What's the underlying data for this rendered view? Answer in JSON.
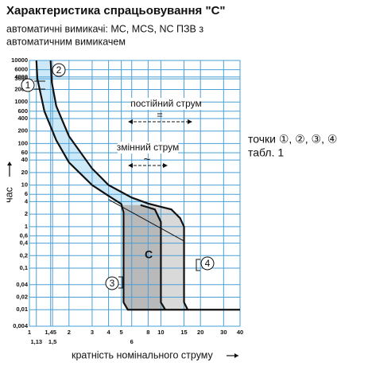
{
  "chart_data": {
    "type": "line",
    "title": "Характеристика спрацьовування \"C\"",
    "subtitle": [
      "автоматичні вимикачі: MC, MCS, NC ПЗВ з",
      "автоматичним вимикачем"
    ],
    "x_label": "кратність номінального струму",
    "y_label": "час",
    "xlog": true,
    "ylog": true,
    "grid": true,
    "xlim": [
      1,
      40
    ],
    "ylim": [
      0.004,
      10000
    ],
    "xticks": [
      1,
      {
        "value": 1.13,
        "label": "1,13"
      },
      {
        "value": 1.45,
        "label": "1,45"
      },
      {
        "value": 1.5,
        "label": "1,5"
      },
      2,
      3,
      4,
      5,
      6,
      8,
      10,
      15,
      20,
      30,
      40
    ],
    "yticks": [
      10000,
      6000,
      4000,
      3600,
      2000,
      1000,
      600,
      400,
      200,
      100,
      60,
      40,
      20,
      10,
      6,
      4,
      2,
      1,
      {
        "value": 0.6,
        "label": "0,6"
      },
      {
        "value": 0.4,
        "label": "0,4"
      },
      {
        "value": 0.2,
        "label": "0,2"
      },
      {
        "value": 0.1,
        "label": "0,1"
      },
      {
        "value": 0.04,
        "label": "0,04"
      },
      {
        "value": 0.02,
        "label": "0,02"
      },
      {
        "value": 0.01,
        "label": "0,01"
      },
      {
        "value": 0.004,
        "label": "0,004"
      }
    ],
    "series": [
      {
        "color": "#111111",
        "x": [
          1.13,
          1.15,
          1.3,
          1.6,
          2,
          3,
          4,
          5,
          5.2,
          5.2,
          5.6,
          40
        ],
        "y": [
          10000,
          3600,
          600,
          120,
          35,
          10,
          5.5,
          3.5,
          2.2,
          0.015,
          0.01,
          0.01
        ]
      },
      {
        "color": "#111111",
        "x": [
          1.45,
          1.48,
          1.6,
          2,
          3,
          4,
          6,
          8,
          10,
          12,
          14,
          15,
          15,
          16
        ],
        "y": [
          10000,
          3000,
          800,
          150,
          25,
          10,
          5,
          3.6,
          3,
          2.6,
          1.6,
          1,
          0.015,
          0.01
        ]
      },
      {
        "color": "#111111",
        "x": [
          7,
          9,
          10,
          10,
          10.8
        ],
        "y": [
          3.3,
          2.6,
          1.3,
          0.015,
          0.01
        ]
      },
      {
        "color": "#111111",
        "x": [
          4,
          15
        ],
        "y": [
          4.5,
          0.45
        ]
      }
    ],
    "annotations": {
      "dc": "постійний струм",
      "dc_symbol": "=",
      "ac": "змінний струм",
      "ac_symbol": "~",
      "zone": "C",
      "points": [
        "1",
        "2",
        "3",
        "4"
      ],
      "note": [
        "точки ①, ②, ③, ④",
        "табл. 1"
      ]
    }
  }
}
